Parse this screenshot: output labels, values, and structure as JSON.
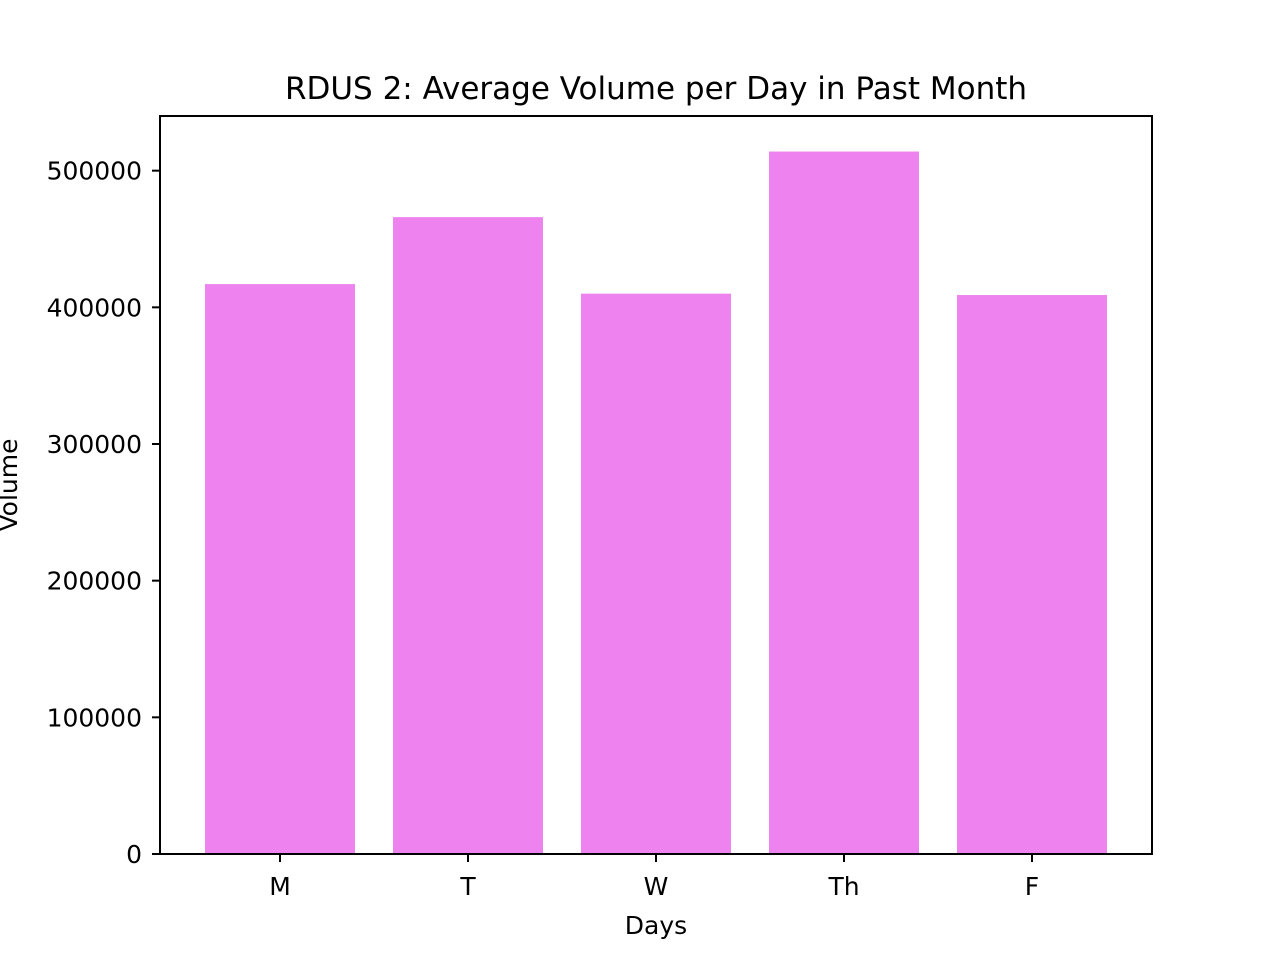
{
  "chart_data": {
    "type": "bar",
    "title": "RDUS 2: Average Volume per Day in Past Month",
    "xlabel": "Days",
    "ylabel": "Volume",
    "categories": [
      "M",
      "T",
      "W",
      "Th",
      "F"
    ],
    "values": [
      417000,
      466000,
      410000,
      514000,
      409000
    ],
    "ylim": [
      0,
      540000
    ],
    "yticks": [
      0,
      100000,
      200000,
      300000,
      400000,
      500000
    ],
    "ytick_labels": [
      "0",
      "100000",
      "200000",
      "300000",
      "400000",
      "500000"
    ],
    "bar_color": "#ee82ee",
    "grid": false
  }
}
